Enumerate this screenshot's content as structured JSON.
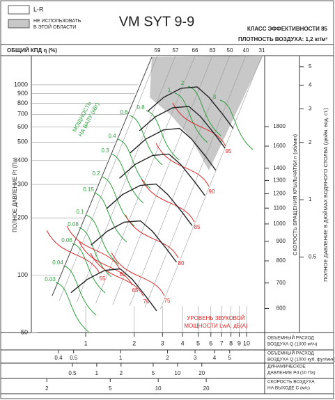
{
  "legend": {
    "items": [
      {
        "lines": [
          "L-R"
        ]
      },
      {
        "lines": [
          "НЕ ИСПОЛЬЗОВАТЬ",
          "В ЭТОЙ ОБЛАСТИ"
        ]
      }
    ]
  },
  "chart_data": {
    "type": "nomogram",
    "title": "VM SYT 9-9",
    "efficiency_class": "КЛАСС ЭФФЕКТИВНОСТИ 85",
    "density": "ПЛОТНОСТЬ ВОЗДУХА: 1,2 кг/м³",
    "efficiency_label": "ОБЩИЙ КПД η (%)",
    "efficiency_ticks": [
      59,
      57,
      66,
      63,
      50,
      40,
      31
    ],
    "ylabel": "ПОЛНОЕ ДАВЛЕНИЕ Pt (Па)",
    "log_y": true,
    "ylim": [
      50,
      1423
    ],
    "yticks": [
      1000,
      900,
      800,
      700,
      600,
      500,
      400,
      300,
      200,
      100,
      50
    ],
    "log_x": true,
    "xlim": [
      0.459,
      12.96
    ],
    "xticks": [
      1,
      2,
      3,
      4,
      5,
      6,
      7,
      8,
      9,
      10
    ],
    "xlabel": [
      "ОБЪЕМНЫЙ РАСХОД",
      "ВОЗДУХА Q (1000 м³/ч)"
    ],
    "rpm_axis": {
      "label": "СКОРОСТЬ ВРАЩЕНИЯ КРЫЛЬЧАТКИ n (об/мин)",
      "lim": [
        519,
        2763
      ],
      "ticks": [
        1800,
        1600,
        1400,
        1300,
        1200,
        1100,
        1000,
        900,
        800,
        700,
        600
      ]
    },
    "inch_axis": {
      "label": "ПОЛНОЕ ДАВЛЕНИЕ В ДЮЙМАХ ВОДЯНОГО СТОЛБА (дюйм. вод. ст.)",
      "lim": [
        0.2007,
        5.713
      ],
      "ticks": [
        5,
        4,
        3,
        2,
        1,
        0.5
      ]
    },
    "bottom_scales": [
      {
        "lines": [
          "ОБЪЕМНЫЙ РАСХОД",
          "ВОЗДУХА Q (1000 куб. фут/мин)"
        ],
        "lim": [
          0.268,
          8.38
        ],
        "ticks": [
          0.4,
          0.5,
          1,
          2,
          3,
          4,
          5
        ]
      },
      {
        "lines": [
          "ДИНАМИЧЕСКОЕ",
          "ДАВЛЕНИЕ Pd (10 Па)"
        ],
        "lim": [
          0.155,
          120
        ],
        "ticks": [
          0.5,
          1,
          2,
          5,
          10,
          20
        ]
      },
      {
        "lines": [
          "СКОРОСТЬ ВОЗДУХА",
          "НА ВЫХОДЕ C (м/с)"
        ],
        "lim": [
          1.6,
          46.5
        ],
        "ticks": [
          2,
          5,
          10,
          20
        ]
      }
    ],
    "curve_color": "#222222",
    "curves": [
      {
        "x": [
          2.43,
          3.05,
          3.92,
          4.93,
          5.84,
          7.13,
          8.27
        ],
        "y": [
          726,
          859,
          959,
          975,
          859,
          697,
          589
        ]
      },
      {
        "x": [
          2.16,
          2.71,
          3.48,
          4.38,
          5.19,
          6.34,
          7.35
        ],
        "y": [
          574,
          679,
          758,
          770,
          679,
          551,
          465
        ]
      },
      {
        "x": [
          1.89,
          2.37,
          3.05,
          3.83,
          4.54,
          5.55,
          6.43
        ],
        "y": [
          439,
          520,
          580,
          590,
          520,
          422,
          356
        ]
      },
      {
        "x": [
          1.62,
          2.03,
          2.61,
          3.29,
          3.89,
          4.75,
          5.51
        ],
        "y": [
          323,
          382,
          426,
          433,
          382,
          310,
          262
        ]
      },
      {
        "x": [
          1.35,
          1.69,
          2.18,
          2.74,
          3.24,
          3.96,
          4.59
        ],
        "y": [
          224,
          265,
          296,
          301,
          265,
          215,
          182
        ]
      },
      {
        "x": [
          1.08,
          1.36,
          1.74,
          2.19,
          2.6,
          3.17,
          3.67
        ],
        "y": [
          144,
          170,
          190,
          193,
          170,
          138,
          117
        ]
      },
      {
        "x": [
          0.81,
          1.02,
          1.31,
          1.64,
          1.95,
          2.38,
          2.76
        ],
        "y": [
          81,
          95,
          106,
          108,
          95,
          77,
          65
        ]
      }
    ],
    "power_label": [
      "МОЩНОСТЬ",
      "НА ВАЛУ (кВт)"
    ],
    "power_color": "#2e9e3e",
    "power_values": [
      0.03,
      0.04,
      0.06,
      0.08,
      0.1,
      0.15,
      0.2,
      0.3,
      0.4,
      0.6,
      0.8,
      1,
      2,
      3
    ],
    "sound_label": [
      "УРОВЕНЬ ЗВУКОВОЙ",
      "МОЩНОСТИ LwA, дБ(A)"
    ],
    "sound_color": "#d42a2a",
    "sound_values": [
      55,
      60,
      65,
      70,
      75,
      80,
      85,
      90,
      95
    ]
  }
}
